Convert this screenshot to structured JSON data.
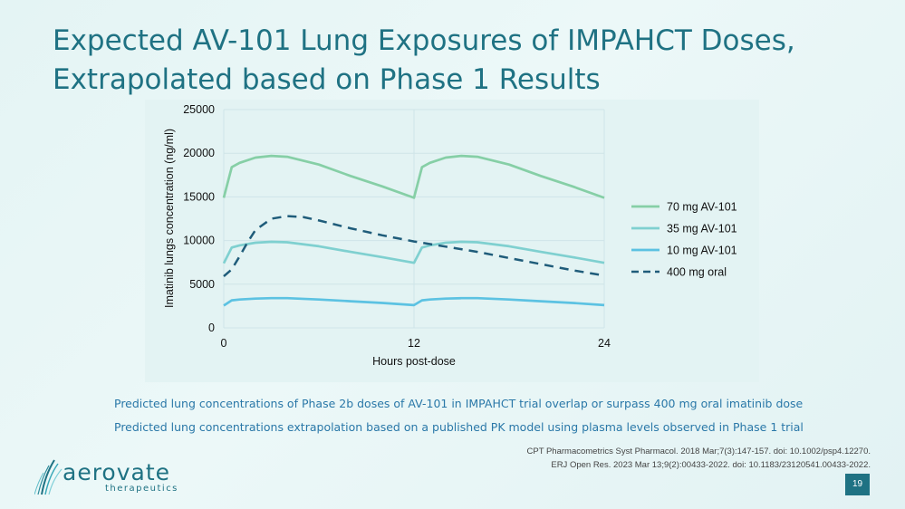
{
  "slide": {
    "title_line1": "Expected AV-101 Lung Exposures of IMPAHCT Doses,",
    "title_line2": "Extrapolated based on Phase 1 Results",
    "note1": "Predicted lung concentrations of Phase 2b doses of AV-101 in IMPAHCT trial overlap or surpass 400 mg oral imatinib dose",
    "note2": "Predicted lung concentrations extrapolation based on a published PK model using plasma levels observed in Phase 1 trial",
    "ref1": "CPT Pharmacometrics Syst Pharmacol. 2018 Mar;7(3):147-157. doi: 10.1002/psp4.12270.",
    "ref2": "ERJ Open Res. 2023 Mar 13;9(2):00433-2022. doi: 10.1183/23120541.00433-2022.",
    "logo_word": "aerovate",
    "logo_sub": "therapeutics",
    "page_number": "19"
  },
  "colors": {
    "title": "#1f7283",
    "s70": "#86cfa6",
    "s35": "#7fd0d0",
    "s10": "#5cc2e2",
    "s400": "#1f5c7a"
  },
  "chart_data": {
    "type": "line",
    "title": "",
    "xlabel": "Hours post-dose",
    "ylabel": "Imatinib lungs concentration (ng/ml)",
    "xlim": [
      0,
      24
    ],
    "ylim": [
      0,
      25000
    ],
    "xticks": [
      0,
      12,
      24
    ],
    "yticks": [
      0,
      5000,
      10000,
      15000,
      20000,
      25000
    ],
    "legend_position": "right",
    "series": [
      {
        "name": "70 mg AV-101",
        "color_key": "s70",
        "dash": false,
        "x": [
          0,
          0.5,
          1,
          2,
          3,
          4,
          6,
          8,
          10,
          12,
          12.5,
          13,
          14,
          15,
          16,
          18,
          20,
          22,
          24
        ],
        "y": [
          14900,
          18400,
          18900,
          19500,
          19700,
          19600,
          18700,
          17400,
          16200,
          14900,
          18400,
          18900,
          19500,
          19700,
          19600,
          18700,
          17400,
          16200,
          14900
        ]
      },
      {
        "name": "35 mg AV-101",
        "color_key": "s35",
        "dash": false,
        "x": [
          0,
          0.5,
          1,
          2,
          3,
          4,
          6,
          8,
          10,
          12,
          12.5,
          13,
          14,
          15,
          16,
          18,
          20,
          22,
          24
        ],
        "y": [
          7400,
          9200,
          9450,
          9750,
          9850,
          9800,
          9350,
          8700,
          8100,
          7450,
          9200,
          9450,
          9750,
          9850,
          9800,
          9350,
          8700,
          8100,
          7450
        ]
      },
      {
        "name": "10 mg AV-101",
        "color_key": "s10",
        "dash": false,
        "x": [
          0,
          0.5,
          1,
          2,
          3,
          4,
          6,
          8,
          10,
          12,
          12.5,
          13,
          14,
          15,
          16,
          18,
          20,
          22,
          24
        ],
        "y": [
          2550,
          3150,
          3250,
          3350,
          3400,
          3400,
          3250,
          3050,
          2850,
          2600,
          3150,
          3250,
          3350,
          3400,
          3400,
          3250,
          3050,
          2850,
          2600
        ]
      },
      {
        "name": "400 mg oral",
        "color_key": "s400",
        "dash": true,
        "x": [
          0,
          0.5,
          1,
          1.5,
          2,
          3,
          4,
          5,
          6,
          8,
          10,
          12,
          14,
          16,
          18,
          20,
          22,
          24
        ],
        "y": [
          5900,
          6700,
          8200,
          9800,
          11200,
          12500,
          12800,
          12700,
          12300,
          11400,
          10600,
          9900,
          9300,
          8700,
          8000,
          7300,
          6600,
          6000
        ]
      }
    ]
  }
}
